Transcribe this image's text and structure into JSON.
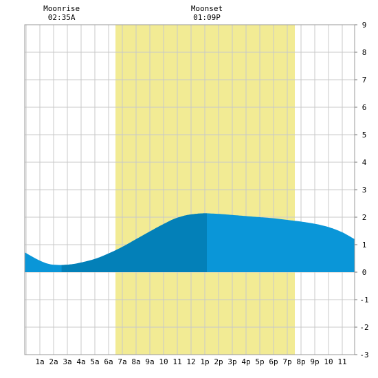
{
  "chart_data": {
    "type": "area",
    "title": "",
    "xlabel": "",
    "ylabel": "",
    "x_ticks": [
      "1a",
      "2a",
      "3a",
      "4a",
      "5a",
      "6a",
      "7a",
      "8a",
      "9a",
      "10",
      "11",
      "12",
      "1p",
      "2p",
      "3p",
      "4p",
      "5p",
      "6p",
      "7p",
      "8p",
      "9p",
      "10",
      "11"
    ],
    "x_range_hours": [
      -0.1,
      23.9
    ],
    "ylim": [
      -3,
      9
    ],
    "y_ticks": [
      -3,
      -2,
      -1,
      0,
      1,
      2,
      3,
      4,
      5,
      6,
      7,
      8,
      9
    ],
    "grid": true,
    "daylight_hours": [
      6.5,
      19.55
    ],
    "annotations": [
      {
        "id": "moonrise",
        "label": "Moonrise",
        "time": "02:35A",
        "hour": 2.58
      },
      {
        "id": "moonset",
        "label": "Moonset",
        "time": "01:09P",
        "hour": 13.15
      }
    ],
    "series": [
      {
        "values_hours": [
          -0.1,
          0.5,
          1.0,
          1.5,
          2.0,
          2.5,
          3.0,
          3.5,
          4.0,
          5.0,
          6.0,
          7.0,
          8.0,
          9.0,
          10.0,
          11.0,
          12.0,
          13.0,
          14.0,
          15.0,
          16.0,
          17.0,
          18.0,
          19.0,
          20.0,
          21.0,
          22.0,
          23.0,
          23.9
        ],
        "values": [
          0.72,
          0.55,
          0.42,
          0.32,
          0.27,
          0.26,
          0.27,
          0.3,
          0.35,
          0.48,
          0.68,
          0.92,
          1.2,
          1.48,
          1.75,
          1.98,
          2.1,
          2.14,
          2.12,
          2.08,
          2.04,
          2.0,
          1.96,
          1.9,
          1.84,
          1.76,
          1.64,
          1.45,
          1.2
        ]
      }
    ],
    "colors": {
      "daylight": "#f2eb94",
      "tide_light": "#0a96d8",
      "tide_dark": "#0380b8",
      "grid": "#c8c8c8"
    }
  }
}
